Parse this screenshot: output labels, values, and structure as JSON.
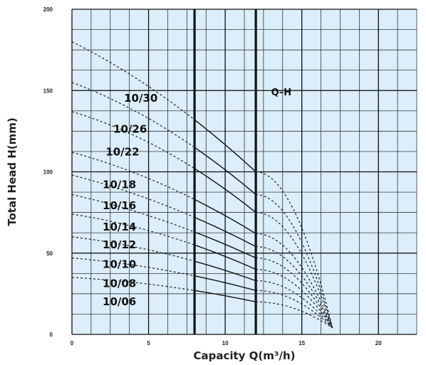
{
  "chart_data": {
    "type": "line",
    "title": "",
    "xlabel": "Capacity Q(m³/h)",
    "ylabel": "Total Head H(mm)",
    "xlim": [
      0,
      22.5
    ],
    "ylim": [
      0,
      200
    ],
    "x_ticks": [
      "0",
      "5",
      "10",
      "15",
      "20"
    ],
    "y_ticks": [
      "0",
      "50",
      "100",
      "150",
      "200"
    ],
    "grid": true,
    "background_color": "#dbeef9",
    "annotation": "Q–H",
    "operating_range": [
      8,
      12
    ],
    "series": [
      {
        "name": "10/30",
        "shutoff": 180,
        "at_8": 132,
        "at_12": 100,
        "end_q": 17
      },
      {
        "name": "10/26",
        "shutoff": 155,
        "at_8": 115,
        "at_12": 86,
        "end_q": 17
      },
      {
        "name": "10/22",
        "shutoff": 137,
        "at_8": 102,
        "at_12": 75,
        "end_q": 17
      },
      {
        "name": "10/18",
        "shutoff": 112,
        "at_8": 83,
        "at_12": 62,
        "end_q": 17
      },
      {
        "name": "10/16",
        "shutoff": 98,
        "at_8": 72,
        "at_12": 54,
        "end_q": 17
      },
      {
        "name": "10/14",
        "shutoff": 86,
        "at_8": 63,
        "at_12": 47,
        "end_q": 17
      },
      {
        "name": "10/12",
        "shutoff": 74,
        "at_8": 55,
        "at_12": 40,
        "end_q": 17
      },
      {
        "name": "10/10",
        "shutoff": 60,
        "at_8": 45,
        "at_12": 33,
        "end_q": 17
      },
      {
        "name": "10/08",
        "shutoff": 47,
        "at_8": 36,
        "at_12": 27,
        "end_q": 17
      },
      {
        "name": "10/06",
        "shutoff": 35,
        "at_8": 27,
        "at_12": 20,
        "end_q": 17
      }
    ],
    "label_positions": [
      {
        "name": "10/30",
        "q": 3.4,
        "h": 143
      },
      {
        "name": "10/26",
        "q": 2.7,
        "h": 124
      },
      {
        "name": "10/22",
        "q": 2.2,
        "h": 110
      },
      {
        "name": "10/18",
        "q": 2.0,
        "h": 90
      },
      {
        "name": "10/16",
        "q": 2.0,
        "h": 77
      },
      {
        "name": "10/14",
        "q": 2.0,
        "h": 64
      },
      {
        "name": "10/12",
        "q": 2.0,
        "h": 53
      },
      {
        "name": "10/10",
        "q": 2.0,
        "h": 41
      },
      {
        "name": "10/08",
        "q": 2.0,
        "h": 29
      },
      {
        "name": "10/06",
        "q": 2.0,
        "h": 18
      }
    ],
    "annotation_position": {
      "q": 13.0,
      "h": 147
    }
  }
}
